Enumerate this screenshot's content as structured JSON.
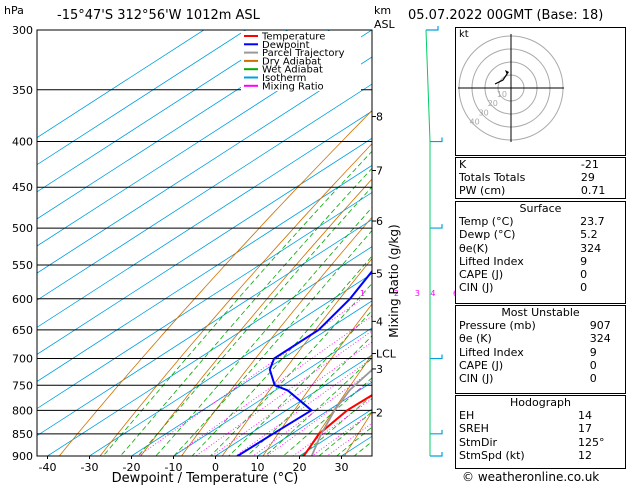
{
  "header": {
    "pressure_unit": "hPa",
    "location": "-15°47'S 312°56'W 1012m ASL",
    "km_unit": "km",
    "asl": "ASL",
    "datetime": "05.07.2022 00GMT (Base: 18)"
  },
  "legend": [
    {
      "label": "Temperature",
      "color": "#ff0000"
    },
    {
      "label": "Dewpoint",
      "color": "#0000ff"
    },
    {
      "label": "Parcel Trajectory",
      "color": "#999999"
    },
    {
      "label": "Dry Adiabat",
      "color": "#d07000"
    },
    {
      "label": "Wet Adiabat",
      "color": "#00aa00"
    },
    {
      "label": "Isotherm",
      "color": "#00a0e0"
    },
    {
      "label": "Mixing Ratio",
      "color": "#ff00ff"
    }
  ],
  "chart_data": {
    "type": "line",
    "title": "",
    "xlabel": "Dewpoint / Temperature (°C)",
    "ylabel": "",
    "xlim": [
      -42,
      38
    ],
    "ylim": [
      900,
      300
    ],
    "y_scale": "log",
    "x_ticks": [
      -40,
      -30,
      -20,
      -10,
      0,
      10,
      20,
      30
    ],
    "pressure_ticks": [
      300,
      350,
      400,
      450,
      500,
      550,
      600,
      650,
      700,
      750,
      800,
      850,
      900
    ],
    "km_ticks": [
      {
        "label": "8",
        "p": 375
      },
      {
        "label": "7",
        "p": 431
      },
      {
        "label": "6",
        "p": 491
      },
      {
        "label": "5",
        "p": 562
      },
      {
        "label": "4",
        "p": 636
      },
      {
        "label": "LCL",
        "p": 691
      },
      {
        "label": "3",
        "p": 719
      },
      {
        "label": "2",
        "p": 805
      }
    ],
    "mixing_ratio_label": "Mixing Ratio (g/kg)",
    "mixing_ratio_lines": [
      "1",
      "2",
      "3",
      "4",
      "6",
      "8",
      "10",
      "15",
      "20",
      "25"
    ],
    "mixing_ratio_values": [
      1,
      2,
      3,
      4,
      6,
      8,
      10,
      15,
      20,
      25
    ],
    "series": [
      {
        "name": "Temperature",
        "color": "#ff0000",
        "points": [
          [
            907,
            23.7
          ],
          [
            900,
            21
          ],
          [
            850,
            16.5
          ],
          [
            800,
            14.5
          ],
          [
            750,
            15
          ],
          [
            700,
            12
          ],
          [
            650,
            7.5
          ],
          [
            600,
            3
          ],
          [
            550,
            -1.5
          ],
          [
            500,
            -6.5
          ],
          [
            450,
            -13
          ],
          [
            400,
            -20
          ],
          [
            350,
            -29
          ],
          [
            300,
            -38
          ]
        ]
      },
      {
        "name": "Dewpoint",
        "color": "#0000ff",
        "points": [
          [
            907,
            5.2
          ],
          [
            850,
            5.5
          ],
          [
            800,
            6
          ],
          [
            760,
            -7
          ],
          [
            750,
            -12
          ],
          [
            720,
            -19
          ],
          [
            700,
            -22
          ],
          [
            650,
            -22
          ],
          [
            600,
            -26
          ],
          [
            550,
            -32
          ],
          [
            500,
            -26
          ],
          [
            450,
            -27
          ],
          [
            400,
            -28
          ],
          [
            350,
            -30
          ],
          [
            300,
            -30
          ]
        ]
      },
      {
        "name": "Parcel Trajectory",
        "color": "#999999",
        "points": [
          [
            907,
            23.7
          ],
          [
            850,
            17
          ],
          [
            800,
            11.5
          ],
          [
            760,
            7.7
          ],
          [
            750,
            7.1
          ],
          [
            700,
            4.3
          ],
          [
            650,
            1.1
          ],
          [
            600,
            -2.5
          ],
          [
            550,
            -6.8
          ],
          [
            500,
            -11.7
          ],
          [
            450,
            -17.3
          ],
          [
            400,
            -23.7
          ],
          [
            350,
            -31.3
          ],
          [
            300,
            -40.3
          ]
        ]
      }
    ]
  },
  "hodograph": {
    "unit_label": "kt",
    "ring_labels": [
      "10",
      "20",
      "30",
      "40"
    ]
  },
  "indices": [
    {
      "label": "K",
      "value": "-21"
    },
    {
      "label": "Totals Totals",
      "value": "29"
    },
    {
      "label": "PW (cm)",
      "value": "0.71"
    }
  ],
  "surface": {
    "title": "Surface",
    "rows": [
      {
        "label": "Temp (°C)",
        "value": "23.7"
      },
      {
        "label": "Dewp (°C)",
        "value": "5.2"
      },
      {
        "label": "θe(K)",
        "value": "324"
      },
      {
        "label": "Lifted Index",
        "value": "9"
      },
      {
        "label": "CAPE (J)",
        "value": "0"
      },
      {
        "label": "CIN (J)",
        "value": "0"
      }
    ]
  },
  "most_unstable": {
    "title": "Most Unstable",
    "rows": [
      {
        "label": "Pressure (mb)",
        "value": "907"
      },
      {
        "label": "θe (K)",
        "value": "324"
      },
      {
        "label": "Lifted Index",
        "value": "9"
      },
      {
        "label": "CAPE (J)",
        "value": "0"
      },
      {
        "label": "CIN (J)",
        "value": "0"
      }
    ]
  },
  "hodograph_params": {
    "title": "Hodograph",
    "rows": [
      {
        "label": "EH",
        "value": "14"
      },
      {
        "label": "SREH",
        "value": "17"
      },
      {
        "label": "StmDir",
        "value": "125°"
      },
      {
        "label": "StmSpd (kt)",
        "value": "12"
      }
    ]
  },
  "copyright": "© weatheronline.co.uk"
}
